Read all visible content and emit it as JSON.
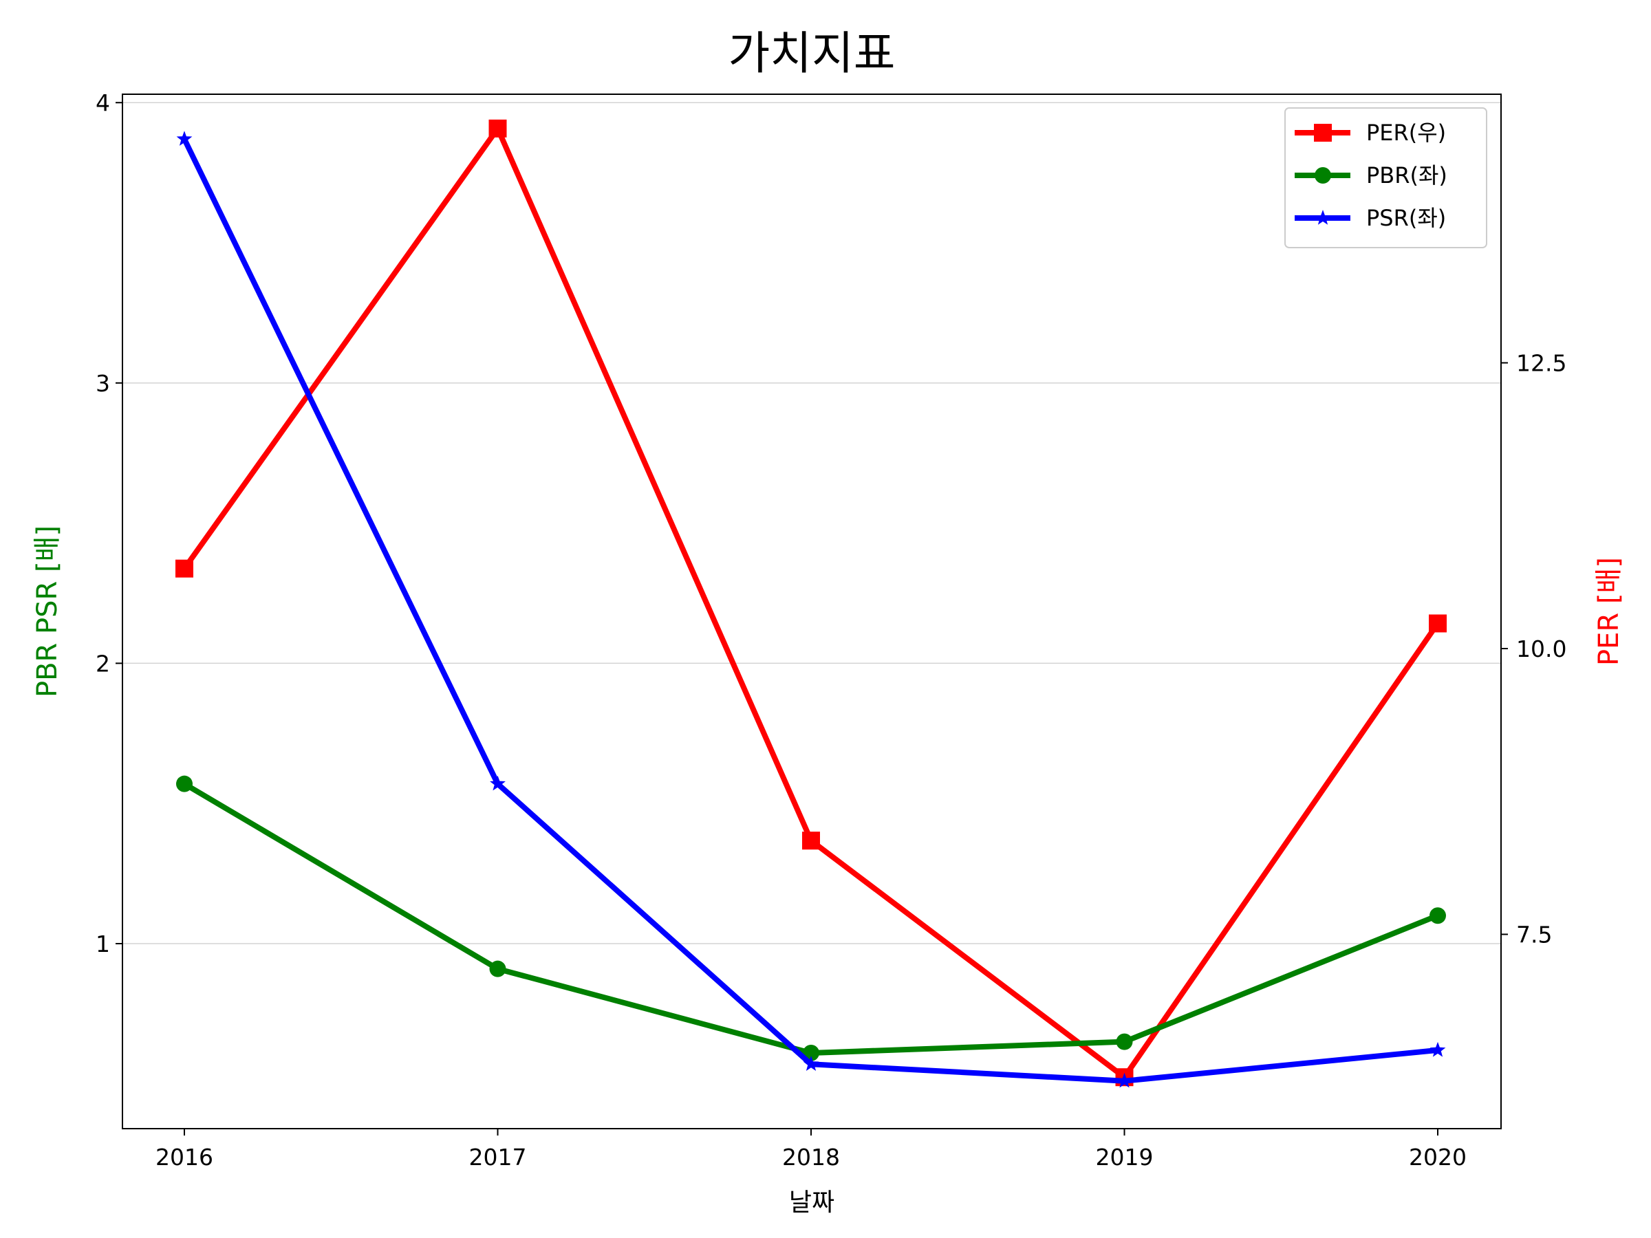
{
  "chart_data": {
    "type": "line",
    "title": "가치지표",
    "xlabel": "날짜",
    "ylabel_left": "PBR PSR [배]",
    "ylabel_right": "PER [배]",
    "categories": [
      "2016",
      "2017",
      "2018",
      "2019",
      "2020"
    ],
    "ylim_left": [
      0.34,
      4.03
    ],
    "yticks_left": [
      "1",
      "2",
      "3",
      "4"
    ],
    "ylim_right": [
      5.8,
      14.85
    ],
    "yticks_right": [
      "7.5",
      "10.0",
      "12.5"
    ],
    "grid": "horizontal (left axis)",
    "legend_position": "top-right",
    "series": [
      {
        "name": "PER(우)",
        "axis": "right",
        "color": "#ff0000",
        "marker": "square",
        "values": [
          10.7,
          14.55,
          8.32,
          6.25,
          10.22
        ]
      },
      {
        "name": "PBR(좌)",
        "axis": "left",
        "color": "#008000",
        "marker": "circle",
        "values": [
          1.57,
          0.91,
          0.61,
          0.65,
          1.1
        ]
      },
      {
        "name": "PSR(좌)",
        "axis": "left",
        "color": "#0000ff",
        "marker": "star",
        "values": [
          3.87,
          1.57,
          0.57,
          0.51,
          0.62
        ]
      }
    ]
  }
}
